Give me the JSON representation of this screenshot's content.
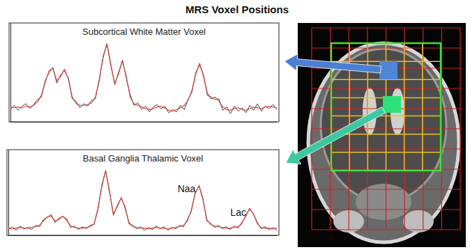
{
  "title": "MRS Voxel Positions",
  "chart_data": [
    {
      "type": "line",
      "title": "Subcortical White Matter Voxel",
      "x": [
        0,
        1,
        2,
        3,
        4,
        5,
        6,
        7,
        8,
        9,
        10,
        11,
        12,
        13,
        14,
        15,
        16,
        17,
        18,
        19,
        20,
        21,
        22,
        23,
        24,
        25,
        26,
        27,
        28,
        29,
        30,
        31,
        32,
        33,
        34,
        35,
        36,
        37,
        38,
        39,
        40,
        41,
        42,
        43,
        44,
        45,
        46,
        47,
        48,
        49,
        50,
        51,
        52,
        53,
        54,
        55,
        56,
        57,
        58,
        59,
        60,
        61,
        62,
        63,
        64,
        65,
        66,
        67,
        68,
        69
      ],
      "xlim": [
        0,
        69
      ],
      "ylim": [
        0,
        120
      ],
      "tick_labels": false,
      "series": [
        {
          "color": "#444444",
          "values": [
            15,
            20,
            14,
            19,
            22,
            16,
            21,
            27,
            30,
            50,
            60,
            66,
            47,
            57,
            62,
            53,
            28,
            25,
            17,
            22,
            19,
            26,
            28,
            52,
            78,
            95,
            68,
            47,
            58,
            75,
            53,
            33,
            20,
            23,
            15,
            19,
            12,
            18,
            21,
            16,
            19,
            11,
            15,
            12,
            20,
            15,
            27,
            36,
            60,
            69,
            57,
            32,
            30,
            27,
            28,
            14,
            18,
            10,
            19,
            13,
            17,
            11,
            20,
            14,
            22,
            13,
            19,
            16,
            21,
            15
          ]
        },
        {
          "color": "#d9433a",
          "values": [
            18,
            17,
            18,
            17,
            19,
            18,
            20,
            24,
            32,
            48,
            62,
            65,
            50,
            55,
            64,
            52,
            30,
            22,
            20,
            20,
            21,
            23,
            30,
            50,
            80,
            94,
            70,
            45,
            60,
            74,
            55,
            30,
            22,
            20,
            18,
            16,
            15,
            16,
            18,
            19,
            17,
            14,
            13,
            15,
            17,
            20,
            26,
            38,
            58,
            71,
            55,
            35,
            28,
            30,
            25,
            18,
            15,
            14,
            16,
            17,
            15,
            14,
            16,
            18,
            17,
            16,
            18,
            19,
            18,
            17
          ]
        }
      ]
    },
    {
      "type": "line",
      "title": "Basal Ganglia Thalamic Voxel",
      "x": [
        0,
        1,
        2,
        3,
        4,
        5,
        6,
        7,
        8,
        9,
        10,
        11,
        12,
        13,
        14,
        15,
        16,
        17,
        18,
        19,
        20,
        21,
        22,
        23,
        24,
        25,
        26,
        27,
        28,
        29,
        30,
        31,
        32,
        33,
        34,
        35,
        36,
        37,
        38,
        39,
        40,
        41,
        42,
        43,
        44,
        45,
        46,
        47,
        48,
        49,
        50,
        51,
        52,
        53,
        54,
        55,
        56,
        57,
        58,
        59,
        60,
        61,
        62,
        63,
        64,
        65,
        66,
        67,
        68,
        69
      ],
      "xlim": [
        0,
        69
      ],
      "ylim": [
        0,
        120
      ],
      "tick_labels": false,
      "annotations": [
        {
          "text": "Naa",
          "x": 49
        },
        {
          "text": "Lac",
          "x": 62
        }
      ],
      "series": [
        {
          "color": "#444444",
          "values": [
            8,
            12,
            7,
            13,
            9,
            11,
            8,
            14,
            12,
            22,
            25,
            29,
            18,
            24,
            26,
            23,
            11,
            13,
            8,
            12,
            9,
            14,
            15,
            37,
            68,
            91,
            62,
            28,
            42,
            52,
            40,
            16,
            14,
            9,
            12,
            7,
            11,
            8,
            13,
            9,
            12,
            7,
            11,
            9,
            14,
            12,
            22,
            33,
            60,
            69,
            52,
            20,
            17,
            11,
            14,
            9,
            12,
            8,
            13,
            10,
            18,
            26,
            38,
            29,
            18,
            9,
            12,
            8,
            11,
            7
          ]
        },
        {
          "color": "#d9433a",
          "values": [
            10,
            9,
            10,
            11,
            10,
            10,
            11,
            12,
            14,
            20,
            26,
            27,
            20,
            22,
            27,
            21,
            13,
            11,
            10,
            10,
            11,
            12,
            16,
            35,
            70,
            90,
            60,
            30,
            40,
            53,
            38,
            18,
            12,
            11,
            10,
            10,
            9,
            10,
            11,
            10,
            10,
            9,
            10,
            11,
            12,
            14,
            20,
            35,
            58,
            70,
            50,
            22,
            15,
            13,
            12,
            11,
            10,
            10,
            11,
            12,
            16,
            28,
            37,
            30,
            16,
            11,
            10,
            10,
            9,
            10
          ]
        }
      ]
    }
  ]
}
